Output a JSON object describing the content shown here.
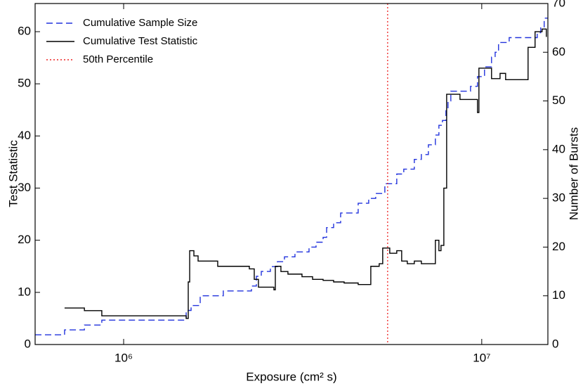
{
  "chart_data": {
    "type": "step",
    "xlabel": "Exposure (cm² s)",
    "ylabel": "Test Statistic",
    "y2label": "Number of Bursts",
    "log_x": true,
    "xlim": [
      566000,
      15300000
    ],
    "xticks": [
      {
        "value": 1000000,
        "label": "10⁶"
      },
      {
        "value": 10000000,
        "label": "10⁷"
      }
    ],
    "ylim": [
      0,
      65.4
    ],
    "yticks": [
      0,
      10,
      20,
      30,
      40,
      50,
      60
    ],
    "y2lim": [
      0,
      70
    ],
    "y2ticks": [
      0,
      10,
      20,
      30,
      40,
      50,
      60,
      70
    ],
    "legend": "upper left",
    "series": [
      {
        "name": "Cumulative Sample Size",
        "color": "#2233dd",
        "style": "dashed",
        "axis": "y2",
        "x": [
          566000,
          684000,
          777000,
          869000,
          1495000,
          1543000,
          1636000,
          1898000,
          2275000,
          2348000,
          2423000,
          2569000,
          2688000,
          2812000,
          3009000,
          3294000,
          3446000,
          3606000,
          3688000,
          3858000,
          4036000,
          4518000,
          4834000,
          5057000,
          5363000,
          5790000,
          6057000,
          6482000,
          6782000,
          7096000,
          7422000,
          7592000,
          7766000,
          7943000,
          8050000,
          8197000,
          9303000,
          9730000,
          10180000,
          10650000,
          10900000,
          11140000,
          11930000,
          14290000,
          14610000,
          14940000,
          15300000
        ],
        "values": [
          2,
          3,
          4,
          5,
          7,
          8,
          10,
          11,
          12,
          14,
          15,
          16,
          17,
          18,
          19,
          20,
          21,
          22,
          24,
          25,
          27,
          29,
          30,
          31,
          33,
          35,
          36,
          38,
          39,
          41,
          43,
          45,
          46,
          48,
          50,
          52,
          53,
          55,
          57,
          59,
          60,
          62,
          63,
          64,
          65,
          67,
          67
        ]
      },
      {
        "name": "Cumulative Test Statistic",
        "color": "#000000",
        "style": "solid",
        "axis": "y",
        "x": [
          684000,
          777000,
          869000,
          1495000,
          1515000,
          1529000,
          1571000,
          1614000,
          1831000,
          2244000,
          2316000,
          2379000,
          2628000,
          2652000,
          2749000,
          2876000,
          3148000,
          3370000,
          3606000,
          3858000,
          4128000,
          4518000,
          4900000,
          5172000,
          5290000,
          5535000,
          5790000,
          5976000,
          6196000,
          6482000,
          6782000,
          7257000,
          7422000,
          7592000,
          7696000,
          7837000,
          7980000,
          8695000,
          9730000,
          9820000,
          10650000,
          11250000,
          11660000,
          13470000,
          14090000,
          14740000,
          15150000
        ],
        "values": [
          7,
          6.5,
          5.5,
          5,
          12,
          18,
          17,
          16,
          15,
          14.5,
          12.5,
          11,
          10.5,
          15,
          14,
          13.5,
          13,
          12.5,
          12.3,
          12,
          11.8,
          11.5,
          15,
          15.5,
          18.5,
          17.5,
          18,
          16,
          15.5,
          16,
          15.5,
          15.5,
          20,
          18,
          19,
          30,
          48,
          47,
          44.5,
          53,
          51,
          52,
          50.8,
          57,
          60,
          60.5,
          59
        ]
      },
      {
        "name": "50th Percentile",
        "color": "#ee2222",
        "style": "dotted",
        "axis": "vline",
        "x": [
          5460000
        ]
      }
    ]
  }
}
